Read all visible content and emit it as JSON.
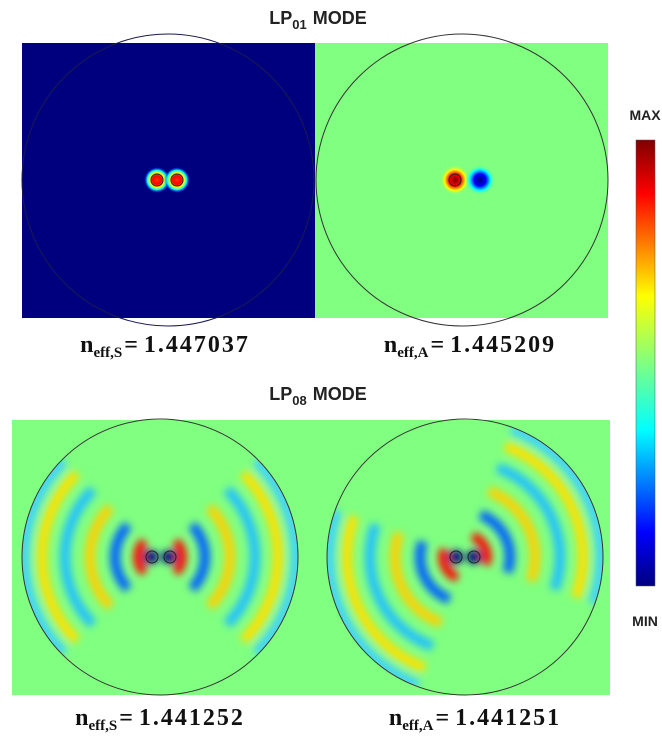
{
  "sections": [
    {
      "title": {
        "base": "LP",
        "sub": "01",
        "rest": "MODE"
      },
      "panels": [
        {
          "label": {
            "base": "n",
            "sub": "eff,S",
            "eq": "=",
            "value": 1.447037
          }
        },
        {
          "label": {
            "base": "n",
            "sub": "eff,A",
            "eq": "=",
            "value": 1.445209
          }
        }
      ]
    },
    {
      "title": {
        "base": "LP",
        "sub": "08",
        "rest": "MODE"
      },
      "panels": [
        {
          "label": {
            "base": "n",
            "sub": "eff,S",
            "eq": "=",
            "value": 1.441252
          }
        },
        {
          "label": {
            "base": "n",
            "sub": "eff,A",
            "eq": "=",
            "value": 1.441251
          }
        }
      ]
    }
  ],
  "colorbar": {
    "max": "MAX",
    "min": "MIN"
  }
}
